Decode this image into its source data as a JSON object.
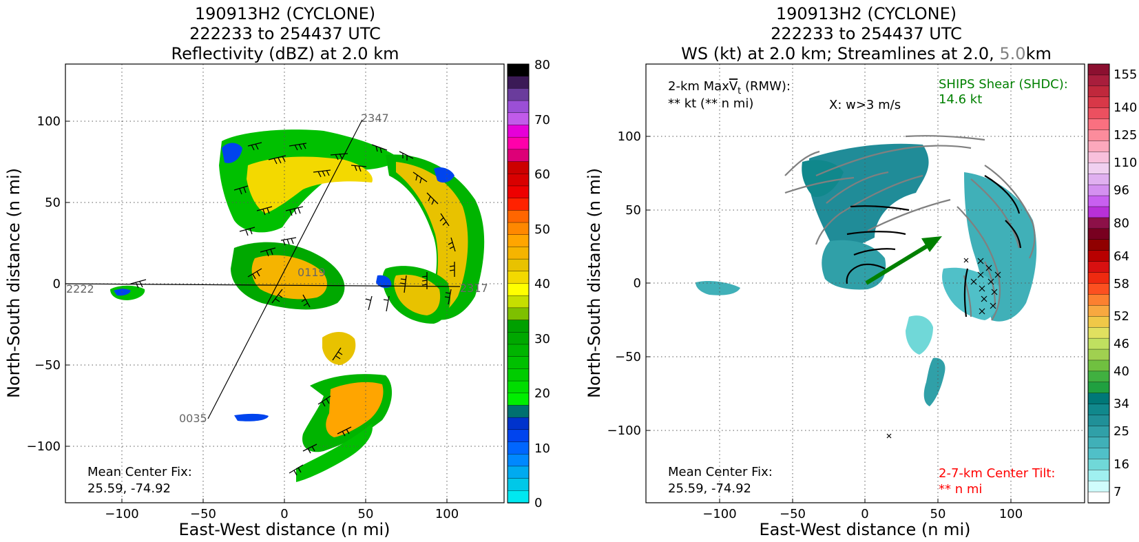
{
  "left": {
    "title_lines": [
      "190913H2 (CYCLONE)",
      "222233 to 254437 UTC",
      "Reflectivity (dBZ) at 2.0 km"
    ],
    "xlabel": "East-West distance (n mi)",
    "ylabel": "North-South distance (n mi)",
    "xticks": [
      "−100",
      "−50",
      "0",
      "50",
      "100"
    ],
    "yticks": [
      "100",
      "50",
      "0",
      "−50",
      "−100"
    ],
    "colorbar_ticks": [
      "80",
      "70",
      "60",
      "50",
      "40",
      "30",
      "20",
      "10",
      "0"
    ],
    "colorbar_colors": [
      "#000000",
      "#3b1a56",
      "#6a3c9c",
      "#9b4fd6",
      "#c15bea",
      "#e600d8",
      "#ff00aa",
      "#dd0077",
      "#cc0000",
      "#d90000",
      "#ee0000",
      "#ff2200",
      "#ff6600",
      "#ff8800",
      "#ffa500",
      "#f5b400",
      "#e8c200",
      "#f3d900",
      "#ffff00",
      "#c6df00",
      "#7ec000",
      "#00a000",
      "#00a800",
      "#00b400",
      "#00c000",
      "#00cc00",
      "#00dd00",
      "#00ee00",
      "#007070",
      "#0033cc",
      "#0044ee",
      "#0066ff",
      "#0088ff",
      "#00aaf0",
      "#00c8e8",
      "#00e8f0"
    ],
    "center_fix_label": "Mean Center Fix:",
    "center_fix_value": "25.59, -74.92",
    "leg_labels": [
      "2347",
      "0119",
      "2222",
      "2317",
      "0035"
    ]
  },
  "right": {
    "title_lines": [
      "190913H2 (CYCLONE)",
      "222233 to 254437 UTC"
    ],
    "title3_a": "WS (kt) at 2.0 km; Streamlines at 2.0,",
    "title3_b": "5.0",
    "title3_c": "km",
    "xlabel": "East-West distance (n mi)",
    "ylabel": "North-South distance (n mi)",
    "xticks": [
      "−100",
      "−50",
      "0",
      "50",
      "100"
    ],
    "yticks": [
      "100",
      "50",
      "0",
      "−50",
      "−100"
    ],
    "colorbar_ticks": [
      "155",
      "140",
      "125",
      "110",
      "96",
      "80",
      "64",
      "58",
      "52",
      "46",
      "40",
      "34",
      "25",
      "16",
      "7"
    ],
    "colorbar_colors": [
      "#8c1030",
      "#a81e3c",
      "#c0283c",
      "#d83848",
      "#ec5060",
      "#fa7080",
      "#fc8c9c",
      "#fca8bc",
      "#f8c0dc",
      "#f0d0f0",
      "#e0b0f0",
      "#d490f0",
      "#c860f0",
      "#b830d8",
      "#8c1048",
      "#780020",
      "#900000",
      "#b80000",
      "#d81010",
      "#ee2a10",
      "#fc5020",
      "#fc8030",
      "#f8a840",
      "#f0c848",
      "#e0e060",
      "#c0e060",
      "#a0d050",
      "#70c040",
      "#40b040",
      "#20a040",
      "#007878",
      "#10888c",
      "#209098",
      "#30a0a8",
      "#40b0b8",
      "#50c0c8",
      "#70d8d8",
      "#a0f0f0",
      "#d0fcfc",
      "#ffffff"
    ],
    "vmax_label_a": "2-km Max",
    "vmax_label_v": "V",
    "vmax_label_t": "t",
    "vmax_label_b": "(RMW):",
    "vmax_value": "** kt (** n mi)",
    "w_label": "X: w>3 m/s",
    "ships_label": "SHIPS Shear (SHDC):",
    "ships_value": "14.6 kt",
    "center_fix_label": "Mean Center Fix:",
    "center_fix_value": "25.59, -74.92",
    "tilt_label": "2-7-km Center Tilt:",
    "tilt_value": "** n mi"
  },
  "chart_data": [
    {
      "type": "heatmap",
      "title": "190913H2 (CYCLONE) 222233 to 254437 UTC Reflectivity (dBZ) at 2.0 km",
      "xlabel": "East-West distance (n mi)",
      "ylabel": "North-South distance (n mi)",
      "xlim": [
        -135,
        135
      ],
      "ylim": [
        -135,
        135
      ],
      "colorbar": {
        "label": "dBZ",
        "min": 0,
        "max": 80
      },
      "grid": true,
      "flight_legs": [
        {
          "from": "2347",
          "to": "0035",
          "start": [
            48,
            105
          ],
          "end": [
            -47,
            -84
          ]
        },
        {
          "from": "2222",
          "to": "2317",
          "start": [
            -133,
            0
          ],
          "end": [
            110,
            -2
          ]
        }
      ],
      "annotations": [
        "Mean Center Fix: 25.59, -74.92"
      ]
    },
    {
      "type": "heatmap",
      "title": "190913H2 (CYCLONE) 222233 to 254437 UTC WS (kt) at 2.0 km; Streamlines at 2.0, 5.0 km",
      "xlabel": "East-West distance (n mi)",
      "ylabel": "North-South distance (n mi)",
      "xlim": [
        -150,
        150
      ],
      "ylim": [
        -150,
        150
      ],
      "colorbar": {
        "label": "kt",
        "ticks": [
          7,
          16,
          25,
          34,
          40,
          46,
          52,
          58,
          64,
          80,
          96,
          110,
          125,
          140,
          155
        ]
      },
      "grid": true,
      "shear_vector": {
        "from": [
          0,
          0
        ],
        "to": [
          52,
          32
        ],
        "color": "#008000"
      },
      "annotations": [
        "2-km MaxVt (RMW): ** kt (** n mi)",
        "X: w>3 m/s",
        "SHIPS Shear (SHDC): 14.6 kt",
        "Mean Center Fix: 25.59, -74.92",
        "2-7-km Center Tilt: ** n mi"
      ]
    }
  ]
}
